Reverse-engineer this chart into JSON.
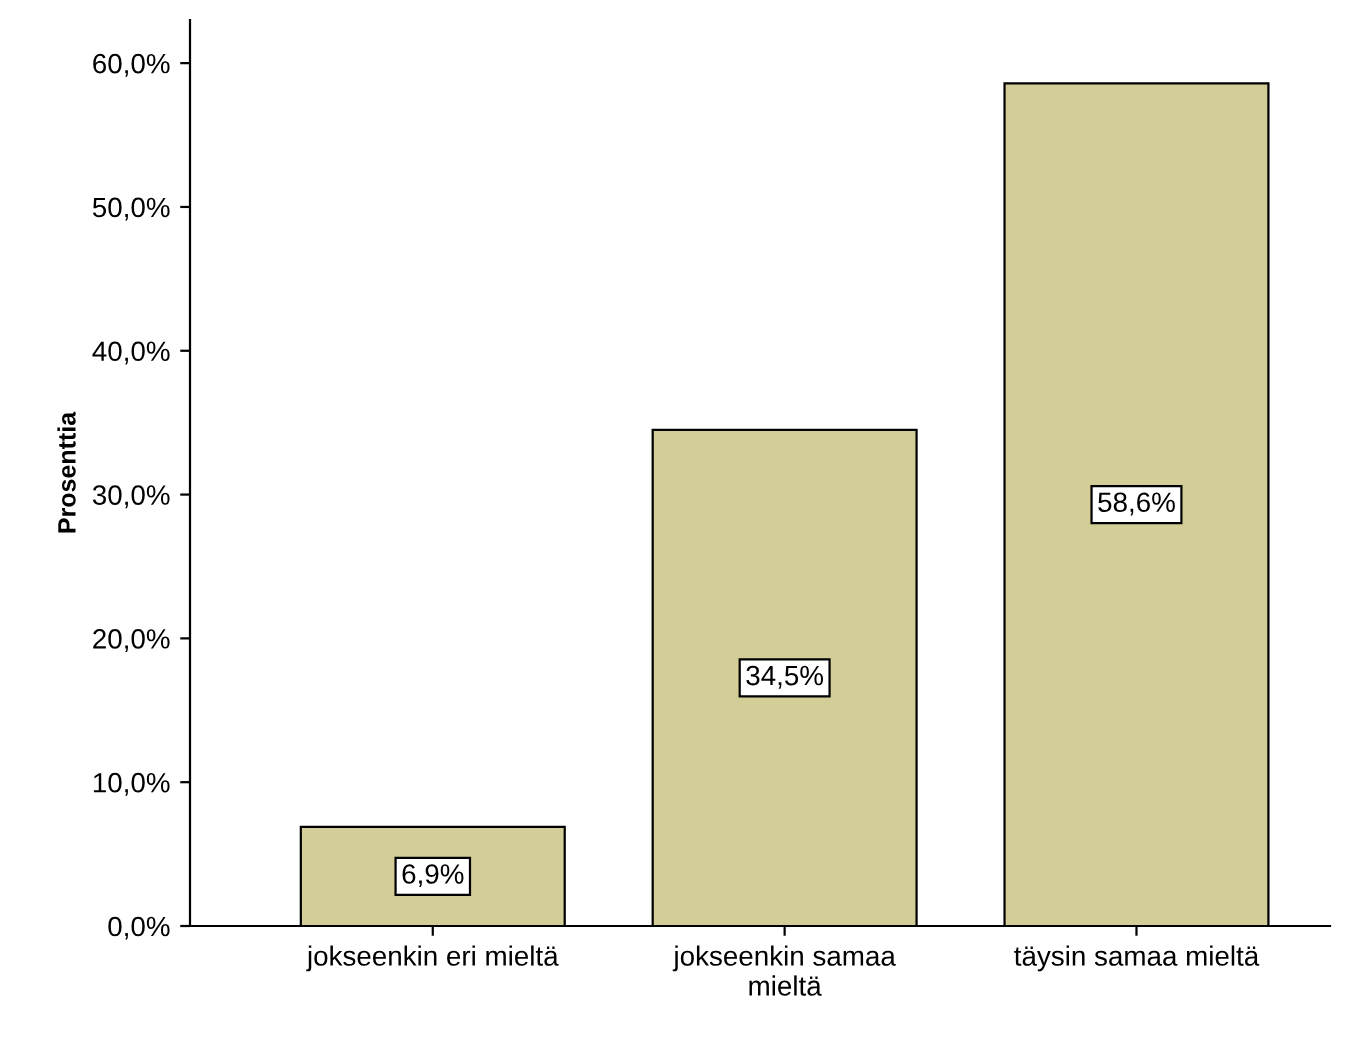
{
  "chart_data": {
    "type": "bar",
    "ylabel": "Prosenttia",
    "categories": [
      "jokseenkin eri mieltä",
      "jokseenkin samaa\nmieltä",
      "täysin samaa mieltä"
    ],
    "values": [
      6.9,
      34.5,
      58.6
    ],
    "color": "#d3ce97",
    "value_labels": [
      "6,9%",
      "34,5%",
      "58,6%"
    ],
    "ylim": [
      0,
      63
    ],
    "yticks": [
      {
        "value": 0,
        "label": "0,0%"
      },
      {
        "value": 10,
        "label": "10,0%"
      },
      {
        "value": 20,
        "label": "20,0%"
      },
      {
        "value": 30,
        "label": "30,0%"
      },
      {
        "value": 40,
        "label": "40,0%"
      },
      {
        "value": 50,
        "label": "50,0%"
      },
      {
        "value": 60,
        "label": "60,0%"
      }
    ],
    "grid": false,
    "legend": false
  }
}
